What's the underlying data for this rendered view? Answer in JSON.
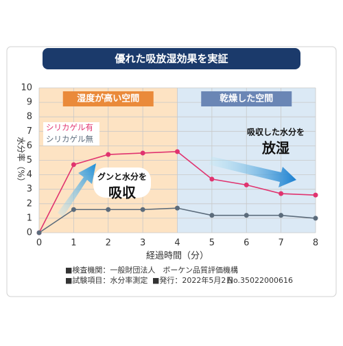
{
  "title": "優れた吸放湿効果を実証",
  "chart_data": {
    "type": "line",
    "x": [
      0,
      1,
      2,
      3,
      4,
      5,
      6,
      7,
      8
    ],
    "series": [
      {
        "name": "シリカゲル有",
        "color": "#e0336f",
        "values": [
          0,
          4.7,
          5.4,
          5.5,
          5.6,
          3.7,
          3.3,
          2.7,
          2.6
        ]
      },
      {
        "name": "シリカゲル無",
        "color": "#5b6b7b",
        "values": [
          0,
          1.6,
          1.6,
          1.6,
          1.7,
          1.2,
          1.2,
          1.2,
          1.0
        ]
      }
    ],
    "xlim": [
      0,
      8
    ],
    "xticks": [
      0,
      1,
      2,
      3,
      4,
      5,
      6,
      7,
      8
    ],
    "ylim": [
      0,
      10
    ],
    "yticks": [
      0,
      1,
      2,
      3,
      4,
      5,
      6,
      7,
      8,
      9,
      10
    ],
    "grid": true,
    "x_label": "経過時間（分）",
    "y_label": "水分率（%）",
    "regions": [
      {
        "label": "湿度が高い空間",
        "from": 0,
        "to": 4,
        "color": "#fde3c3",
        "label_color": "#ea8a3a"
      },
      {
        "label": "乾燥した空間",
        "from": 4,
        "to": 8,
        "color": "#dbe9f5",
        "label_color": "#6a86b5"
      }
    ],
    "annotations": [
      {
        "line1": "グンと水分を",
        "line2": "吸収"
      },
      {
        "line1": "吸収した水分を",
        "line2": "放湿"
      }
    ]
  },
  "notes": [
    "■検査機関：一般財団法人　ボーケン品質評価機構",
    "■試験項目：水分率測定",
    "■発行：2022年5月2日",
    "No.35022000616"
  ]
}
